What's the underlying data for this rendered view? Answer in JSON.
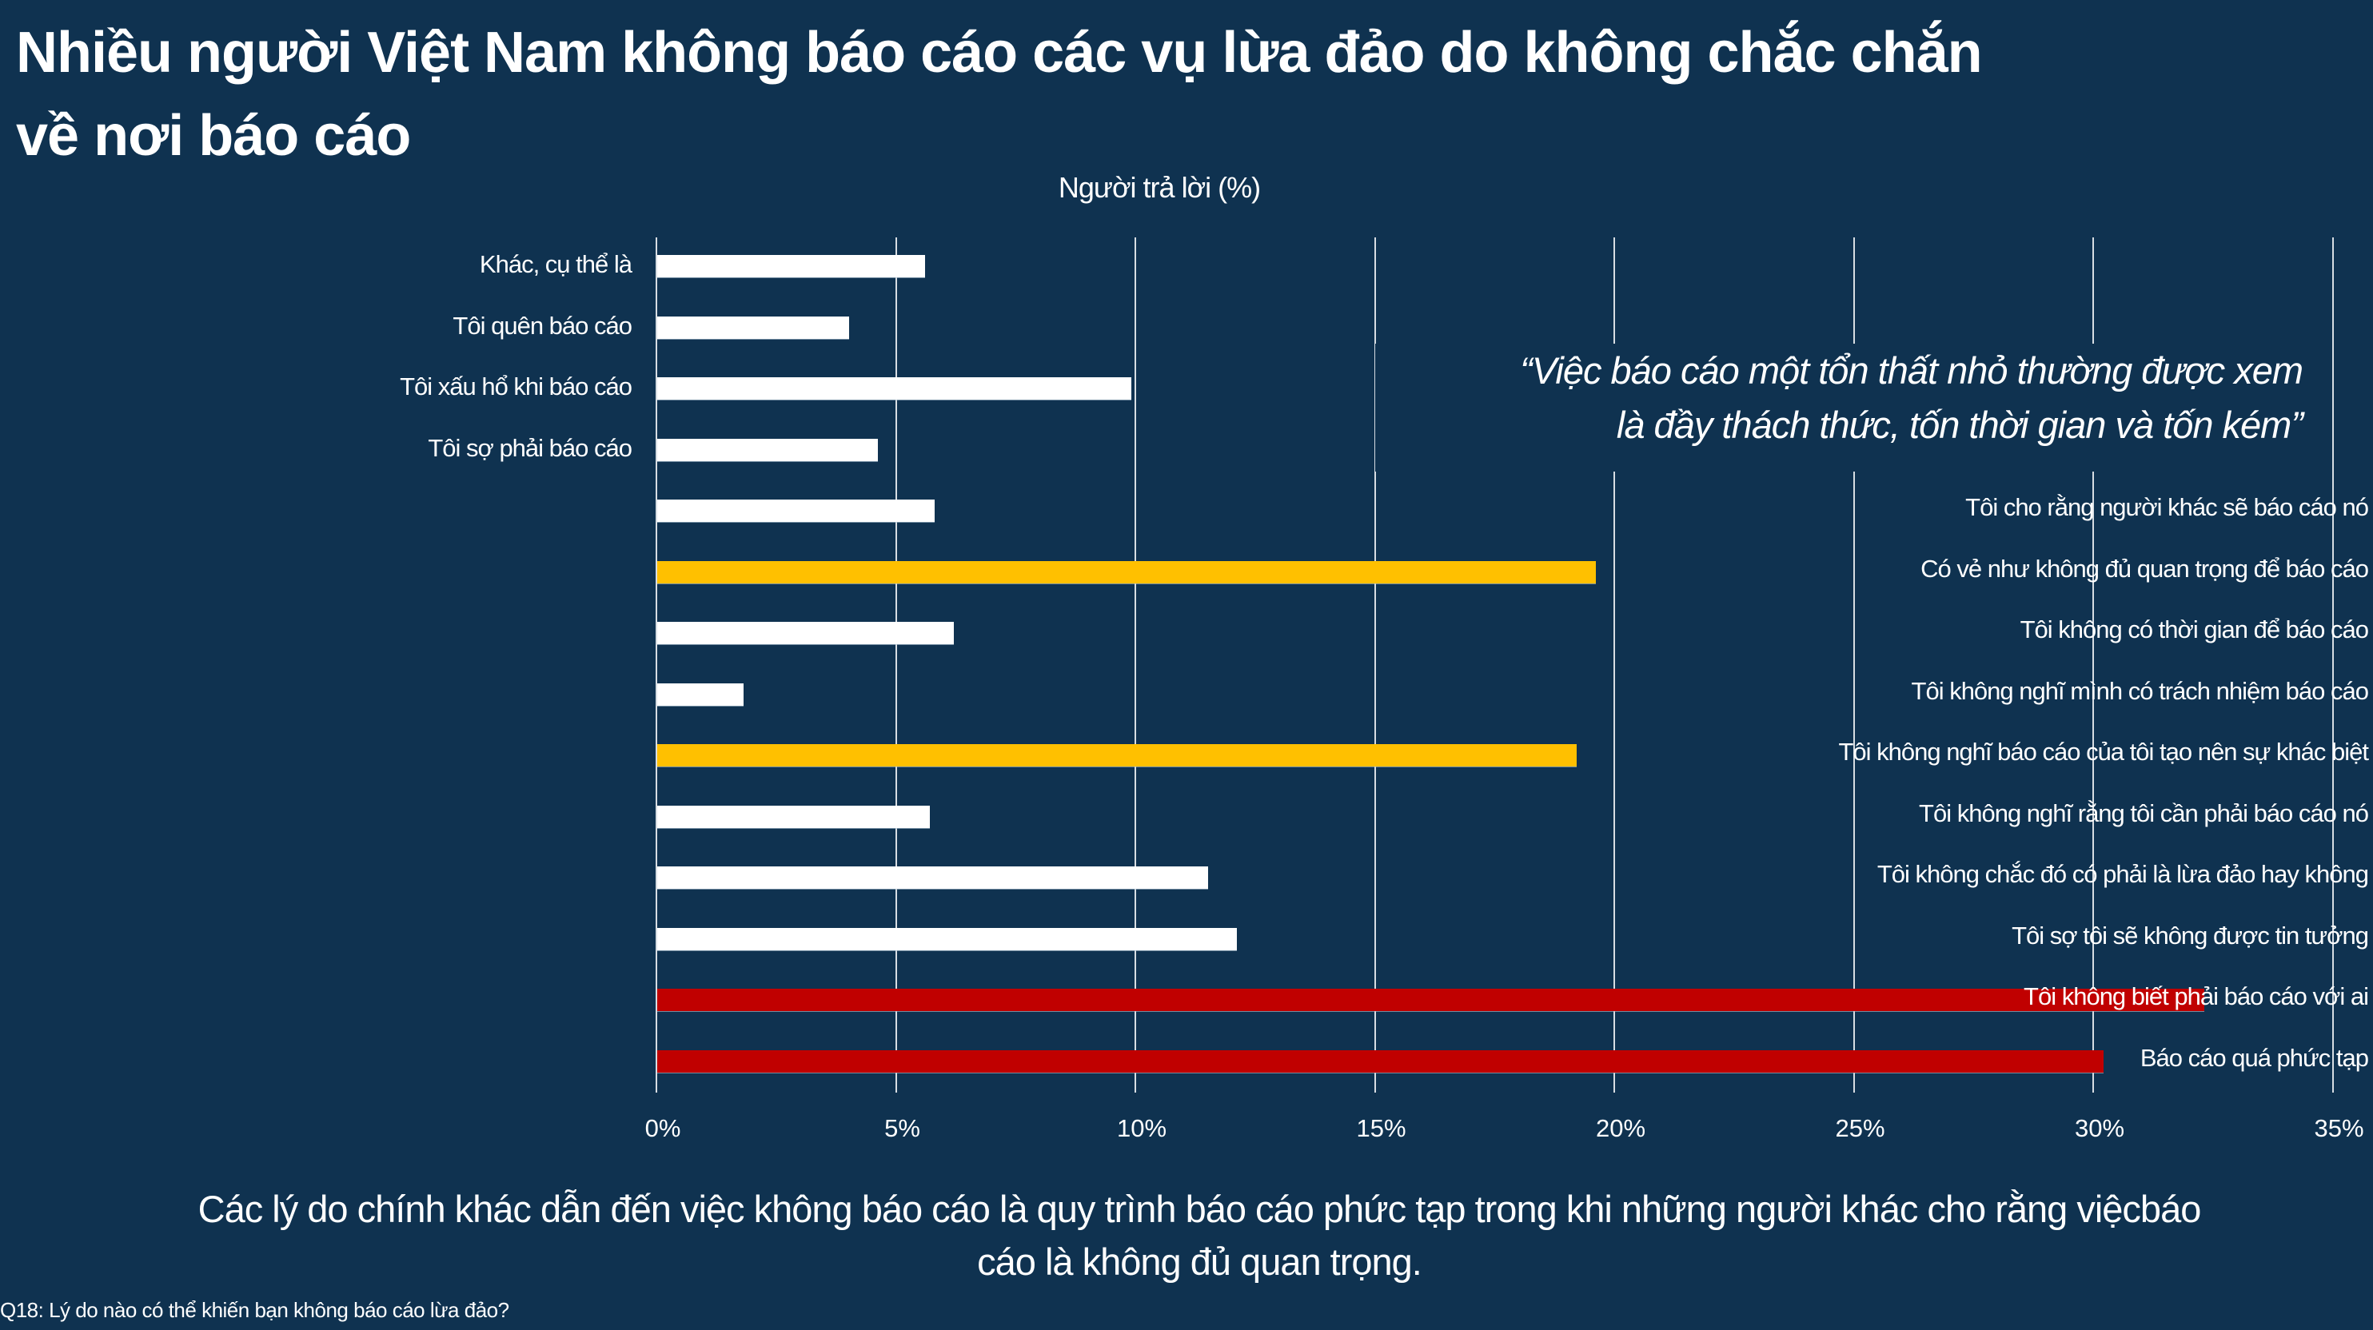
{
  "title": {
    "line1": "Nhiều người Việt Nam không báo cáo các vụ lừa đảo do không chắc chắn",
    "line2": "về nơi báo cáo"
  },
  "axis_title": "Người trả lời (%)",
  "quote": {
    "line1": "“Việc báo cáo một tổn thất nhỏ thường được xem",
    "line2": "là đầy thách thức, tốn thời gian và tốn kém”"
  },
  "caption": {
    "line1": "Các lý do chính khác dẫn đến việc không báo cáo là quy trình báo cáo phức tạp trong khi những người khác cho rằng việcbáo",
    "line2": "cáo là không đủ quan trọng."
  },
  "footnote": "Q18: Lý do nào có thể khiến bạn không báo cáo lừa đảo?",
  "colors": {
    "background": "#0f3250",
    "bar_default": "#ffffff",
    "bar_highlight_yellow": "#ffc000",
    "bar_highlight_red": "#c00000",
    "gridline": "#d7dde3"
  },
  "chart_data": {
    "type": "bar",
    "orientation": "horizontal",
    "title": "Nhiều người Việt Nam không báo cáo các vụ lừa đảo do không chắc chắn về nơi báo cáo",
    "xlabel": "Người trả lời (%)",
    "ylabel": "",
    "xlim": [
      0,
      35
    ],
    "x_ticks": [
      "0%",
      "5%",
      "10%",
      "15%",
      "20%",
      "25%",
      "30%",
      "35%"
    ],
    "grid": true,
    "legend": null,
    "categories": [
      "Khác, cụ thể là",
      "Tôi quên báo cáo",
      "Tôi xấu hổ khi báo cáo",
      "Tôi sợ phải báo cáo",
      "Tôi cho rằng người khác sẽ báo cáo nó",
      "Có vẻ như không đủ quan trọng để báo cáo",
      "Tôi không có thời gian để báo cáo",
      "Tôi không nghĩ mình có trách nhiệm báo cáo",
      "Tôi không nghĩ báo cáo của tôi tạo nên sự khác biệt",
      "Tôi không nghĩ rằng tôi cần phải báo cáo nó",
      "Tôi không chắc đó có phải là lừa đảo hay không",
      "Tôi sợ tôi sẽ không được tin tưởng",
      "Tôi không biết phải báo cáo với ai",
      "Báo cáo quá phức tạp"
    ],
    "values": [
      5.6,
      4.0,
      9.9,
      4.6,
      5.8,
      19.6,
      6.2,
      1.8,
      19.2,
      5.7,
      11.5,
      12.1,
      32.3,
      30.2
    ],
    "bar_colors": [
      "white",
      "white",
      "white",
      "white",
      "white",
      "yellow",
      "white",
      "white",
      "yellow",
      "white",
      "white",
      "white",
      "red",
      "red"
    ],
    "label_side": [
      "left",
      "left",
      "left",
      "left",
      "right",
      "right",
      "right",
      "right",
      "right",
      "right",
      "right",
      "right",
      "right",
      "right"
    ],
    "annotations": [
      "“Việc báo cáo một tổn thất nhỏ thường được xem là đầy thách thức, tốn thời gian và tốn kém”"
    ]
  }
}
